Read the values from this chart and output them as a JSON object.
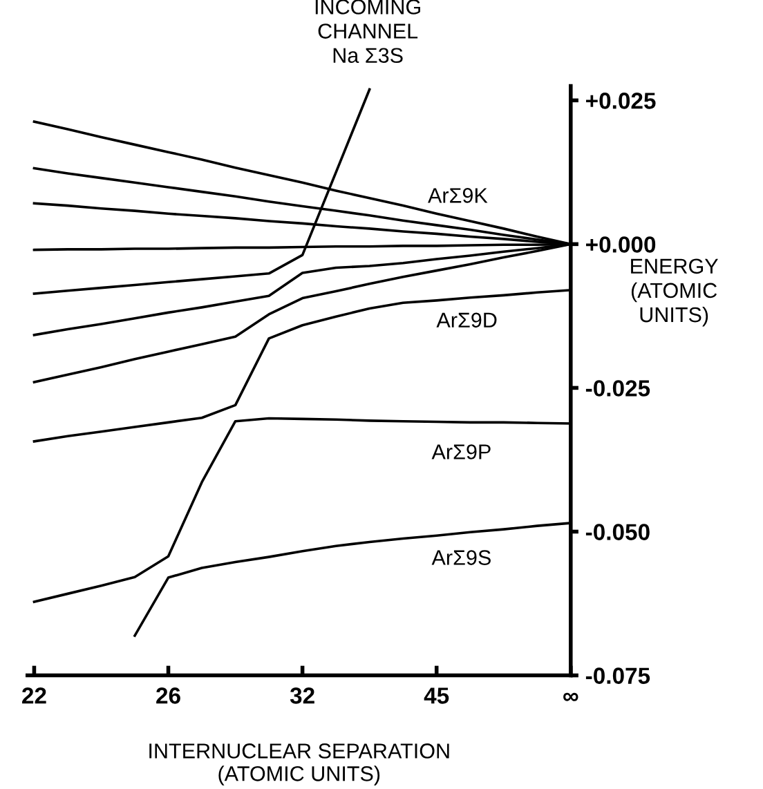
{
  "chart_data": {
    "type": "line",
    "xlabel": "INTERNUCLEAR SEPARATION\n(ATOMIC UNITS)",
    "ylabel": "ENERGY\n(ATOMIC\nUNITS)",
    "categories": [
      "22",
      null,
      null,
      null,
      "26",
      null,
      null,
      null,
      "32",
      null,
      null,
      null,
      "45",
      null,
      null,
      null,
      "∞"
    ],
    "ylim": [
      -0.075,
      0.0275
    ],
    "yticks": [
      {
        "value": 0.025,
        "label": "+0.025"
      },
      {
        "value": 0,
        "label": "+0.000"
      },
      {
        "value": -0.025,
        "label": "-0.025"
      },
      {
        "value": -0.05,
        "label": "-0.050"
      },
      {
        "value": -0.075,
        "label": "-0.075"
      }
    ],
    "grid": false,
    "legend": false,
    "marker": "none",
    "line_style": "solid",
    "series": [
      {
        "color": "#000000",
        "values": [
          0.0213,
          0.02,
          0.0186,
          0.0173,
          0.016,
          0.0147,
          0.0133,
          0.012,
          0.0107,
          0.0093,
          0.008,
          0.0067,
          0.0053,
          0.004,
          0.0027,
          0.0013,
          0
        ]
      },
      {
        "color": "#000000",
        "values": [
          0.0132,
          0.0123,
          0.0115,
          0.0107,
          0.0099,
          0.0091,
          0.0083,
          0.0074,
          0.0066,
          0.0058,
          0.005,
          0.0041,
          0.0033,
          0.0025,
          0.0016,
          0.0008,
          0
        ]
      },
      {
        "color": "#000000",
        "values": [
          0.0071,
          0.0067,
          0.0062,
          0.0058,
          0.0053,
          0.0049,
          0.0045,
          0.004,
          0.0036,
          0.0031,
          0.0027,
          0.0022,
          0.0018,
          0.0013,
          0.0009,
          0.0004,
          0
        ]
      },
      {
        "color": "#000000",
        "values": [
          -0.001,
          -0.0009,
          -0.0009,
          -0.0008,
          -0.0008,
          -0.0007,
          -0.0006,
          -0.0006,
          -0.0005,
          -0.0004,
          -0.0004,
          -0.0003,
          -0.0003,
          -0.0002,
          -0.0001,
          -0.0001,
          0
        ]
      },
      {
        "color": "#000000",
        "values": [
          -0.0086,
          -0.0081,
          -0.0076,
          -0.0071,
          -0.0066,
          -0.0061,
          -0.0056,
          -0.0051,
          -0.0019,
          0.0125,
          0.0269,
          null,
          null,
          null,
          null,
          null,
          null
        ]
      },
      {
        "color": "#000000",
        "values": [
          -0.0158,
          -0.0148,
          -0.0139,
          -0.0129,
          -0.0119,
          -0.011,
          -0.01,
          -0.009,
          -0.005,
          -0.0041,
          -0.0038,
          -0.0033,
          -0.0026,
          -0.002,
          -0.0013,
          -0.0007,
          0
        ]
      },
      {
        "color": "#000000",
        "values": [
          -0.024,
          -0.0227,
          -0.0214,
          -0.02,
          -0.0187,
          -0.0174,
          -0.0161,
          -0.0122,
          -0.0094,
          -0.0082,
          -0.0069,
          -0.0057,
          -0.0046,
          -0.0035,
          -0.0023,
          -0.0012,
          0
        ]
      },
      {
        "color": "#000000",
        "values": [
          -0.0343,
          -0.0334,
          -0.0326,
          -0.0318,
          -0.031,
          -0.0302,
          -0.028,
          -0.0164,
          -0.0141,
          -0.0126,
          -0.0112,
          -0.0102,
          -0.0098,
          -0.0093,
          -0.0089,
          -0.0084,
          -0.008
        ]
      },
      {
        "color": "#000000",
        "values": [
          -0.0622,
          -0.0608,
          -0.0594,
          -0.0579,
          -0.0543,
          -0.0414,
          -0.0308,
          -0.0303,
          -0.0304,
          -0.0305,
          -0.0307,
          -0.0308,
          -0.0309,
          -0.031,
          -0.031,
          -0.0311,
          -0.0312
        ]
      },
      {
        "color": "#000000",
        "values": [
          null,
          null,
          null,
          -0.0681,
          -0.058,
          -0.0563,
          -0.0553,
          -0.0544,
          -0.0534,
          -0.0525,
          -0.0518,
          -0.0512,
          -0.0507,
          -0.0501,
          -0.0496,
          -0.049,
          -0.0485
        ]
      }
    ],
    "annotations": [
      "INCOMING\nCHANNEL\nNa Σ3S",
      "ArΣ9K",
      "ArΣ9D",
      "ArΣ9P",
      "ArΣ9S"
    ]
  }
}
